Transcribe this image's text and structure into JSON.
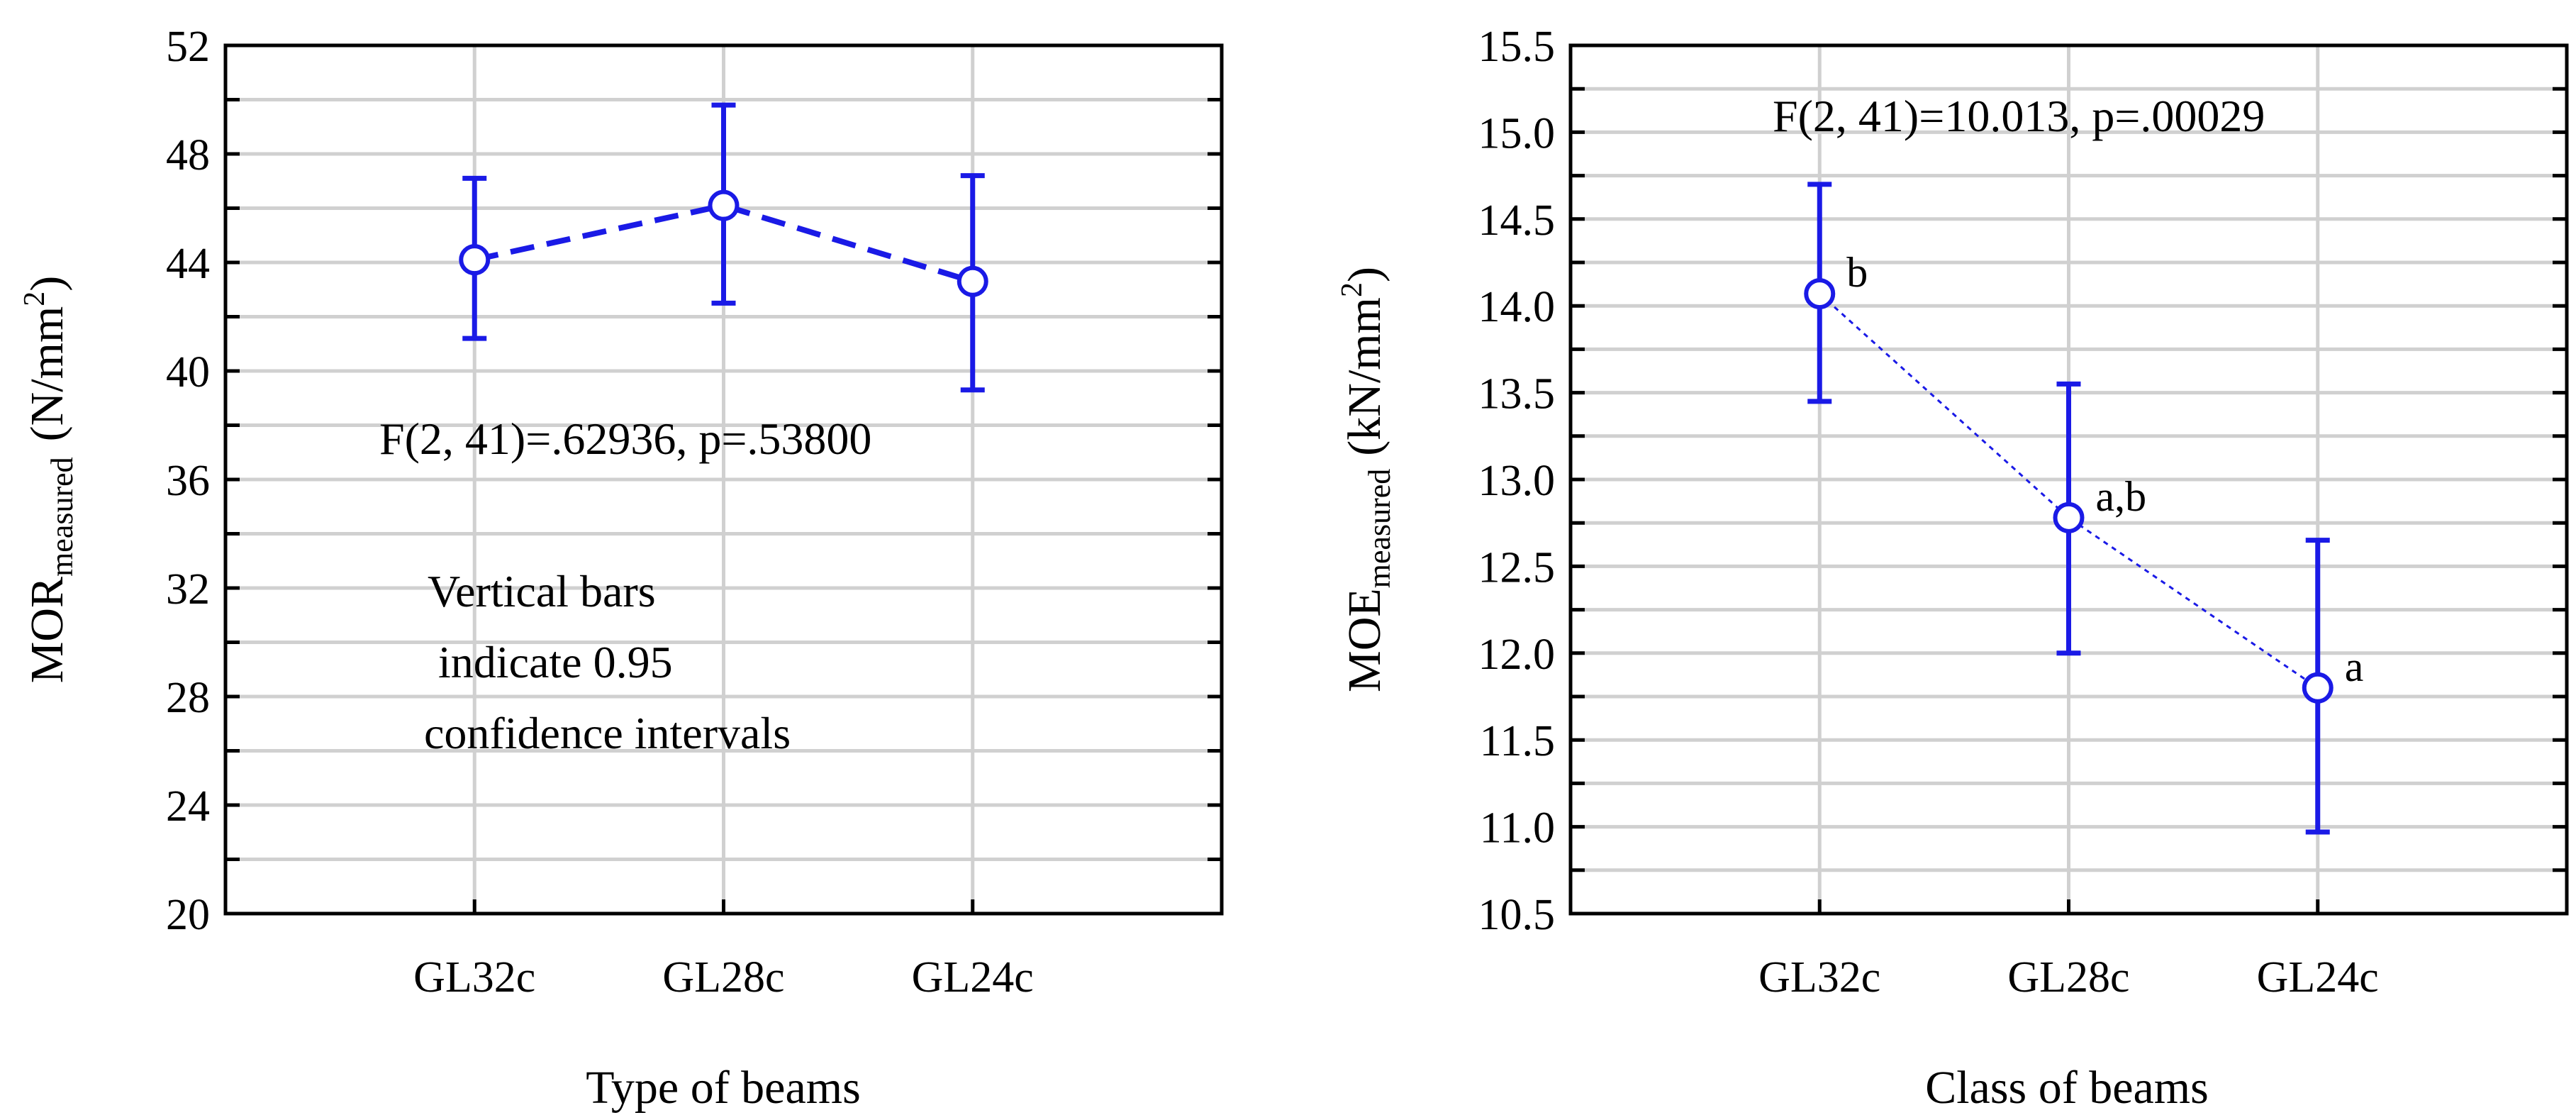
{
  "chart_data": [
    {
      "type": "line",
      "series_style": "means with 0.95 confidence intervals (dashed)",
      "xlabel": "Type of beams",
      "ylabel": {
        "main": "MOR",
        "subscript": "measured",
        "unit_pre": "(N/mm",
        "unit_sup": "2",
        "unit_post": ")"
      },
      "categories": [
        "GL32c",
        "GL28c",
        "GL24c"
      ],
      "means": [
        44.1,
        46.1,
        43.3
      ],
      "ci_low": [
        41.2,
        42.5,
        39.3
      ],
      "ci_high": [
        47.1,
        49.8,
        47.2
      ],
      "ylim": [
        20,
        52
      ],
      "yticks": [
        "20",
        "24",
        "28",
        "32",
        "36",
        "40",
        "44",
        "48",
        "52"
      ],
      "minor_step": 2,
      "grid": true,
      "annotations": {
        "stat": "F(2, 41)=.62936, p=.53800",
        "note": [
          "Vertical bars",
          "indicate 0.95",
          "confidence intervals"
        ]
      },
      "group_letters": [],
      "color": "#1a1ae6"
    },
    {
      "type": "line",
      "series_style": "means with 0.95 confidence intervals (dotted)",
      "xlabel": "Class of beams",
      "ylabel": {
        "main": "MOE",
        "subscript": "measured",
        "unit_pre": "(kN/mm",
        "unit_sup": "2",
        "unit_post": ")"
      },
      "categories": [
        "GL32c",
        "GL28c",
        "GL24c"
      ],
      "means": [
        14.07,
        12.78,
        11.8
      ],
      "ci_low": [
        13.45,
        12.0,
        10.97
      ],
      "ci_high": [
        14.7,
        13.55,
        12.65
      ],
      "ylim": [
        10.5,
        15.5
      ],
      "yticks": [
        "10.5",
        "11.0",
        "11.5",
        "12.0",
        "12.5",
        "13.0",
        "13.5",
        "14.0",
        "14.5",
        "15.0",
        "15.5"
      ],
      "minor_step": 0.25,
      "grid": true,
      "annotations": {
        "stat": "F(2, 41)=10.013, p=.00029",
        "note": []
      },
      "group_letters": [
        "b",
        "a,b",
        "a"
      ],
      "color": "#1a1ae6"
    }
  ]
}
